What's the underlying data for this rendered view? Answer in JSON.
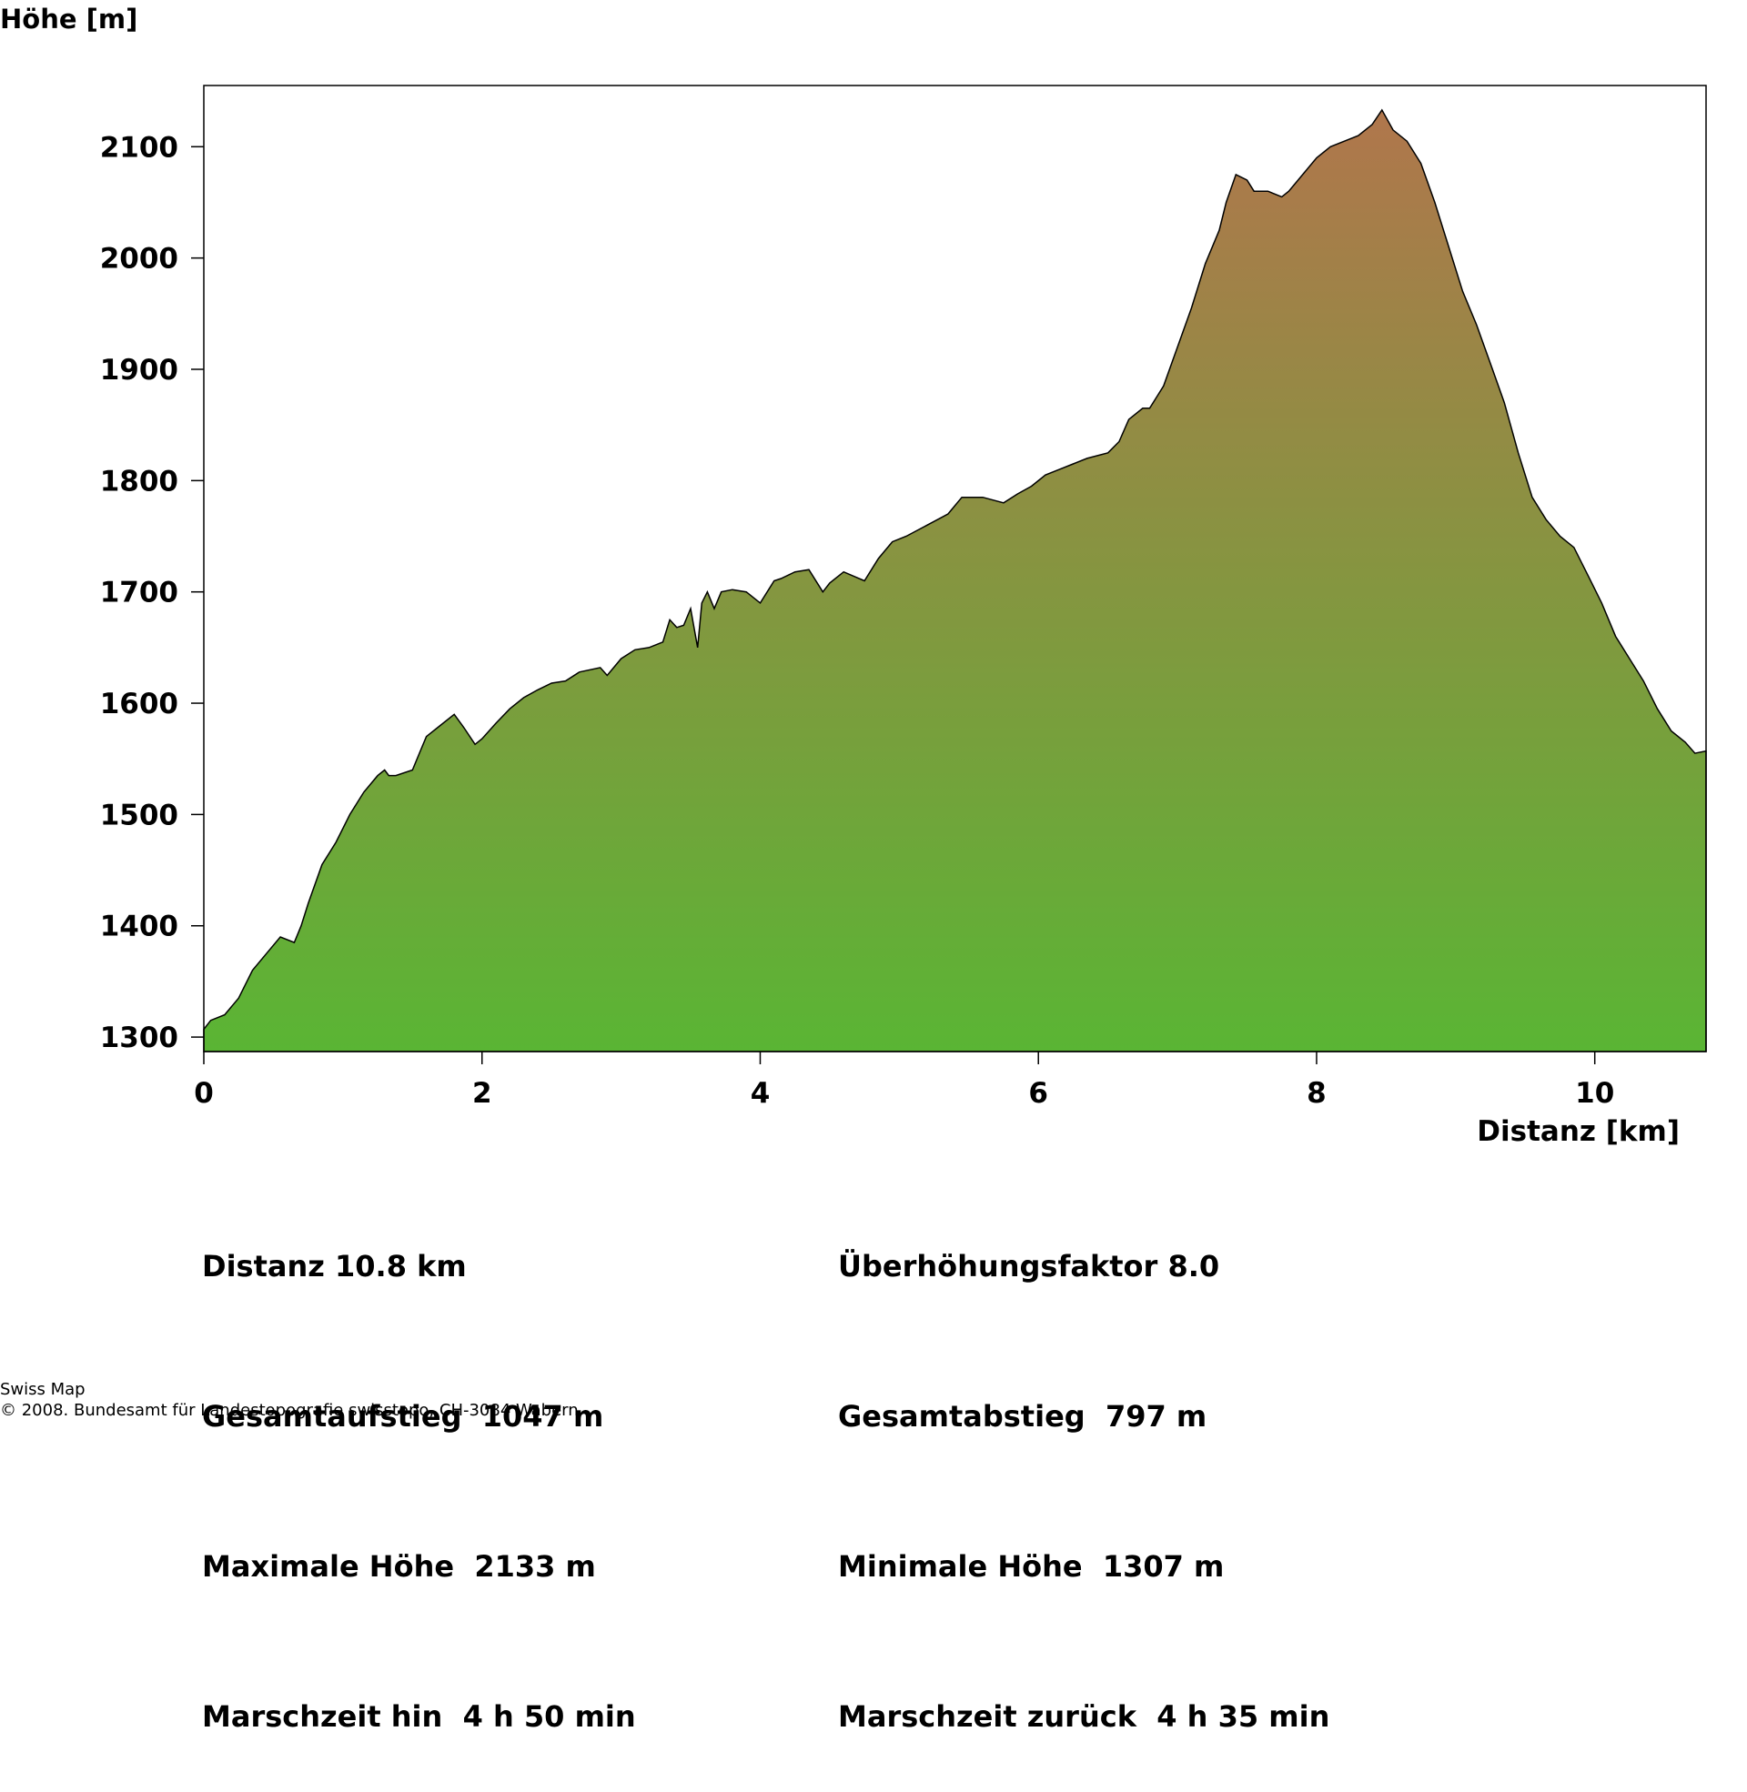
{
  "chart_data": {
    "type": "area",
    "ylabel": "Höhe [m]",
    "xlabel": "Distanz [km]",
    "xlim": [
      0,
      10.8
    ],
    "ylim": [
      1287,
      2155
    ],
    "x_ticks": [
      "0",
      "2",
      "4",
      "6",
      "8",
      "10"
    ],
    "y_ticks": [
      "1300",
      "1400",
      "1500",
      "1600",
      "1700",
      "1800",
      "1900",
      "2000",
      "2100"
    ],
    "fill_top_color": "#b0764c",
    "fill_bottom_color": "#5ab534",
    "series": [
      {
        "x": [
          0,
          0.05,
          0.15,
          0.25,
          0.35,
          0.45,
          0.55,
          0.65,
          0.7,
          0.75,
          0.85,
          0.95,
          1.05,
          1.15,
          1.25,
          1.3,
          1.33,
          1.38,
          1.5,
          1.55,
          1.6,
          1.7,
          1.8,
          1.87,
          1.95,
          2.0,
          2.05,
          2.1,
          2.2,
          2.3,
          2.4,
          2.5,
          2.6,
          2.7,
          2.85,
          2.9,
          3.0,
          3.1,
          3.2,
          3.3,
          3.35,
          3.4,
          3.45,
          3.5,
          3.55,
          3.58,
          3.62,
          3.67,
          3.72,
          3.8,
          3.9,
          4.0,
          4.1,
          4.15,
          4.25,
          4.35,
          4.45,
          4.5,
          4.6,
          4.75,
          4.85,
          4.95,
          5.05,
          5.2,
          5.35,
          5.45,
          5.6,
          5.75,
          5.85,
          5.95,
          6.05,
          6.15,
          6.25,
          6.35,
          6.5,
          6.58,
          6.65,
          6.75,
          6.8,
          6.9,
          7.0,
          7.1,
          7.2,
          7.3,
          7.35,
          7.42,
          7.5,
          7.55,
          7.65,
          7.75,
          7.8,
          7.9,
          8.0,
          8.1,
          8.2,
          8.3,
          8.4,
          8.47,
          8.55,
          8.65,
          8.75,
          8.85,
          8.95,
          9.05,
          9.15,
          9.25,
          9.35,
          9.45,
          9.55,
          9.65,
          9.75,
          9.85,
          9.95,
          10.05,
          10.15,
          10.25,
          10.35,
          10.45,
          10.55,
          10.65,
          10.72,
          10.8
        ],
        "y": [
          1307,
          1315,
          1320,
          1335,
          1360,
          1375,
          1390,
          1385,
          1400,
          1420,
          1455,
          1475,
          1500,
          1520,
          1535,
          1540,
          1535,
          1535,
          1540,
          1555,
          1570,
          1580,
          1590,
          1578,
          1563,
          1568,
          1575,
          1582,
          1595,
          1605,
          1612,
          1618,
          1620,
          1628,
          1632,
          1625,
          1640,
          1648,
          1650,
          1655,
          1675,
          1668,
          1670,
          1685,
          1650,
          1690,
          1700,
          1685,
          1700,
          1702,
          1700,
          1690,
          1710,
          1712,
          1718,
          1720,
          1700,
          1708,
          1718,
          1710,
          1730,
          1745,
          1750,
          1760,
          1770,
          1785,
          1785,
          1780,
          1788,
          1795,
          1805,
          1810,
          1815,
          1820,
          1825,
          1835,
          1855,
          1865,
          1865,
          1885,
          1920,
          1955,
          1995,
          2025,
          2050,
          2075,
          2070,
          2060,
          2060,
          2055,
          2060,
          2075,
          2090,
          2100,
          2105,
          2110,
          2120,
          2133,
          2115,
          2105,
          2085,
          2050,
          2010,
          1970,
          1940,
          1905,
          1870,
          1825,
          1785,
          1765,
          1750,
          1740,
          1715,
          1690,
          1660,
          1640,
          1620,
          1595,
          1575,
          1565,
          1555,
          1557
        ]
      }
    ]
  },
  "stats": {
    "distanz": "Distanz 10.8 km",
    "ueberhoehung": "Überhöhungsfaktor 8.0",
    "aufstieg": "Gesamtaufstieg  1047 m",
    "abstieg": "Gesamtabstieg  797 m",
    "max": "Maximale Höhe  2133 m",
    "min": "Minimale Höhe  1307 m",
    "zeit_hin": "Marschzeit hin  4 h 50 min",
    "zeit_zurueck": "Marschzeit zurück  4 h 35 min"
  },
  "footer": {
    "line1": "Swiss Map",
    "line2": "© 2008. Bundesamt für Landestopografie swisstopo, CH-3084 Wabern"
  }
}
